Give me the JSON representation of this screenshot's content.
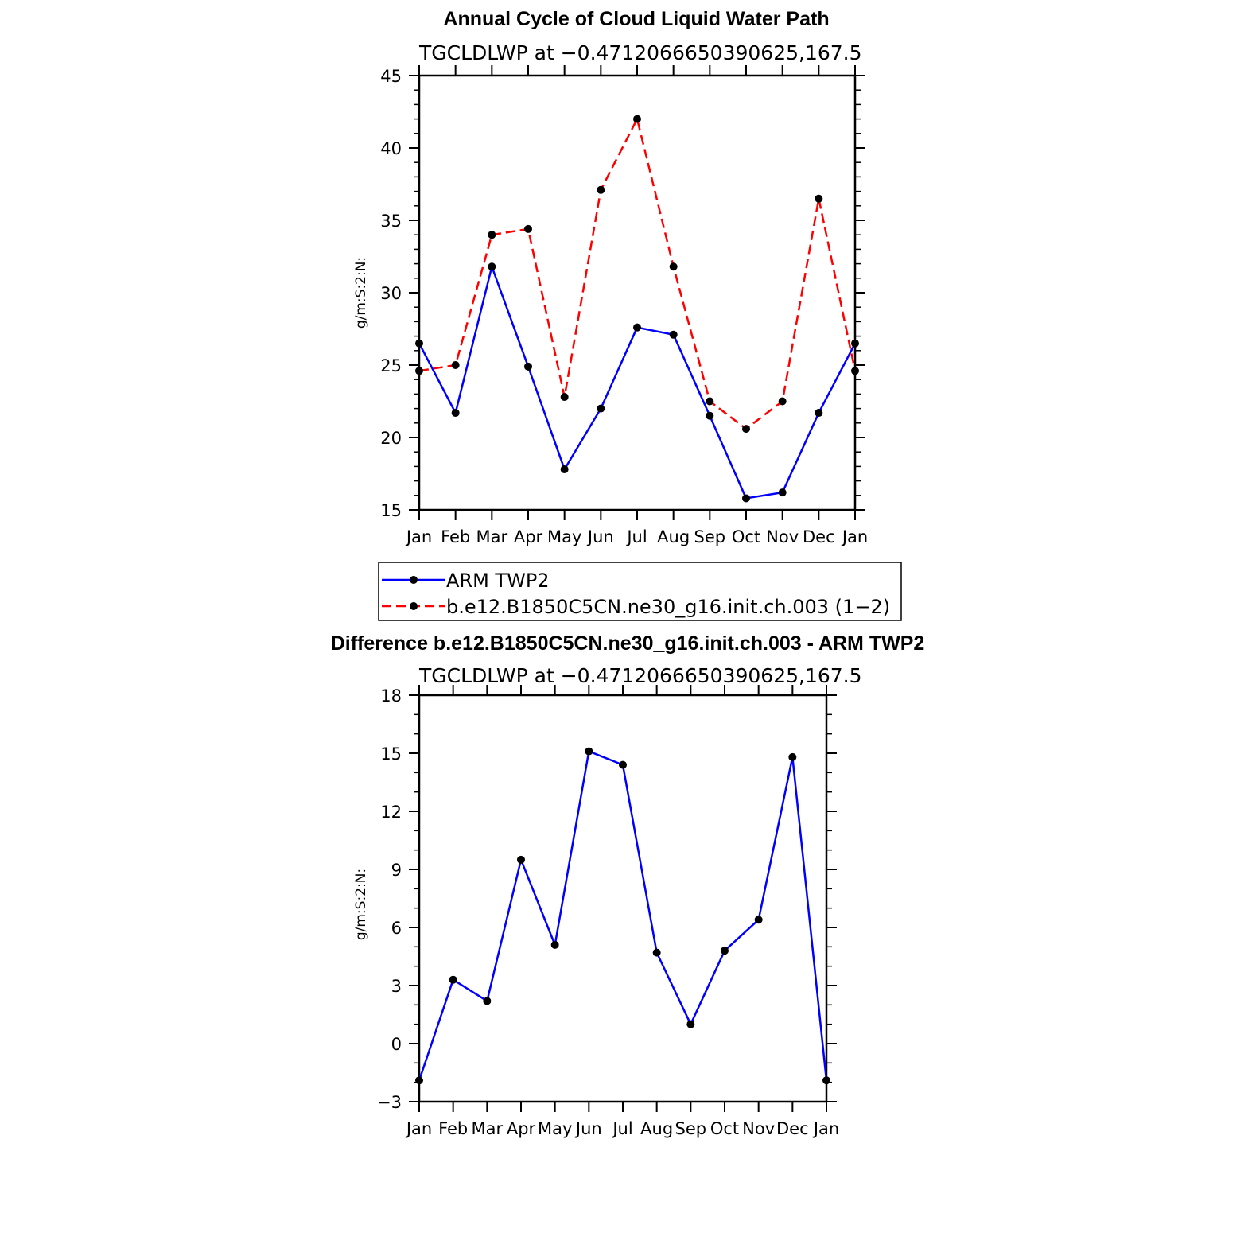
{
  "chart_data": [
    {
      "type": "line",
      "title": "Annual Cycle of Cloud Liquid Water Path",
      "subtitle": "TGCLDLWP at −0.4712066650390625,167.5",
      "ylabel": "g/m:S:2:N:",
      "xlabel": "",
      "categories": [
        "Jan",
        "Feb",
        "Mar",
        "Apr",
        "May",
        "Jun",
        "Jul",
        "Aug",
        "Sep",
        "Oct",
        "Nov",
        "Dec",
        "Jan"
      ],
      "ylim": [
        15,
        45
      ],
      "yticks": [
        "15",
        "20",
        "25",
        "30",
        "35",
        "40",
        "45"
      ],
      "series": [
        {
          "name": "ARM TWP2",
          "color": "#0000ff",
          "dash": "solid",
          "values": [
            26.5,
            21.7,
            31.8,
            24.9,
            17.8,
            22.0,
            27.6,
            27.1,
            21.5,
            15.8,
            16.2,
            21.7,
            26.5
          ]
        },
        {
          "name": "b.e12.B1850C5CN.ne30_g16.init.ch.003 (1−2)",
          "color": "#ff0000",
          "dash": "dashed",
          "values": [
            24.6,
            25.0,
            34.0,
            34.4,
            22.8,
            37.1,
            42.0,
            31.8,
            22.5,
            20.6,
            22.5,
            36.5,
            24.6
          ]
        }
      ],
      "legend": "below"
    },
    {
      "type": "line",
      "title": "Difference b.e12.B1850C5CN.ne30_g16.init.ch.003 - ARM TWP2",
      "subtitle": "TGCLDLWP at −0.4712066650390625,167.5",
      "ylabel": "g/m:S:2:N:",
      "xlabel": "",
      "categories": [
        "Jan",
        "Feb",
        "Mar",
        "Apr",
        "May",
        "Jun",
        "Jul",
        "Aug",
        "Sep",
        "Oct",
        "Nov",
        "Dec",
        "Jan"
      ],
      "ylim": [
        -3,
        18
      ],
      "yticks": [
        "−3",
        "0",
        "3",
        "6",
        "9",
        "12",
        "15",
        "18"
      ],
      "series": [
        {
          "color": "#0000ff",
          "dash": "solid",
          "values": [
            -1.9,
            3.3,
            2.2,
            9.5,
            5.1,
            15.1,
            14.4,
            4.7,
            1.0,
            4.8,
            6.4,
            14.8,
            -1.9
          ]
        }
      ]
    }
  ]
}
